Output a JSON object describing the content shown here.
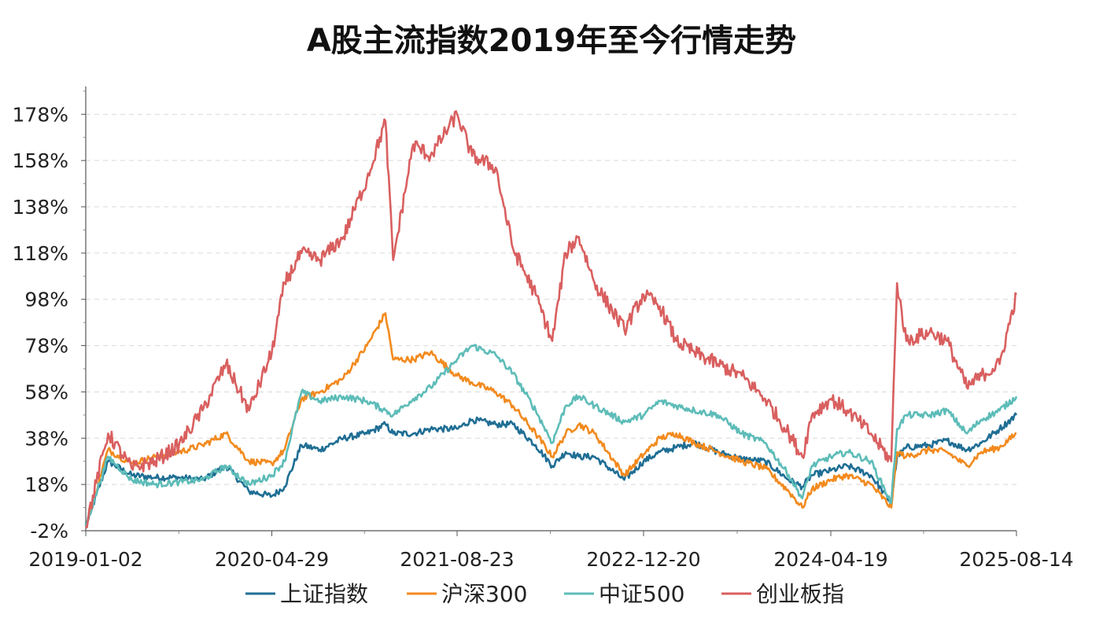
{
  "chart_data": {
    "type": "line",
    "title": "A股主流指数2019年至今行情走势",
    "xlabel": "",
    "ylabel": "",
    "x_tick_labels": [
      "2019-01-02",
      "2020-04-29",
      "2021-08-23",
      "2022-12-20",
      "2024-04-19",
      "2025-08-14"
    ],
    "y_ticks": [
      -2,
      18,
      38,
      58,
      78,
      98,
      118,
      138,
      158,
      178
    ],
    "y_tick_labels": [
      "-2%",
      "18%",
      "38%",
      "58%",
      "78%",
      "98%",
      "118%",
      "138%",
      "158%",
      "178%"
    ],
    "ylim": [
      -2,
      190
    ],
    "grid": "horizontal-dashed",
    "legend_position": "bottom",
    "x": [
      "2019-01-02",
      "2019-03-01",
      "2019-05-01",
      "2019-07-01",
      "2019-09-01",
      "2019-11-01",
      "2020-01-01",
      "2020-03-01",
      "2020-04-29",
      "2020-06-01",
      "2020-07-15",
      "2020-09-01",
      "2020-11-01",
      "2021-01-01",
      "2021-02-18",
      "2021-03-10",
      "2021-05-01",
      "2021-06-15",
      "2021-08-23",
      "2021-10-01",
      "2021-12-01",
      "2022-01-15",
      "2022-03-15",
      "2022-04-27",
      "2022-06-01",
      "2022-07-05",
      "2022-08-15",
      "2022-10-31",
      "2022-12-20",
      "2023-01-31",
      "2023-03-15",
      "2023-05-01",
      "2023-07-01",
      "2023-09-01",
      "2023-11-01",
      "2024-01-01",
      "2024-02-05",
      "2024-03-01",
      "2024-04-19",
      "2024-06-01",
      "2024-08-01",
      "2024-09-23",
      "2024-10-08",
      "2024-11-01",
      "2025-01-01",
      "2025-02-15",
      "2025-04-07",
      "2025-05-15",
      "2025-07-01",
      "2025-08-14"
    ],
    "series": [
      {
        "name": "上证指数",
        "color": "#1f6e94",
        "values": [
          0,
          28,
          22,
          21,
          21,
          20,
          26,
          15,
          13,
          17,
          35,
          33,
          38,
          40,
          44,
          40,
          40,
          42,
          42,
          46,
          44,
          44,
          35,
          26,
          32,
          30,
          30,
          20,
          28,
          32,
          34,
          36,
          32,
          29,
          28,
          20,
          17,
          22,
          24,
          26,
          22,
          10,
          30,
          34,
          35,
          37,
          33,
          36,
          42,
          48
        ]
      },
      {
        "name": "沪深300",
        "color": "#f28a1e",
        "values": [
          0,
          33,
          27,
          30,
          32,
          35,
          40,
          28,
          27,
          33,
          55,
          58,
          64,
          78,
          92,
          72,
          72,
          75,
          65,
          62,
          58,
          52,
          40,
          30,
          40,
          44,
          40,
          22,
          31,
          38,
          40,
          36,
          32,
          28,
          25,
          15,
          8,
          16,
          20,
          22,
          18,
          8,
          32,
          30,
          33,
          32,
          26,
          32,
          34,
          40
        ]
      },
      {
        "name": "中证500",
        "color": "#5dbcb8",
        "values": [
          0,
          30,
          20,
          18,
          19,
          20,
          26,
          18,
          22,
          28,
          58,
          54,
          56,
          54,
          50,
          48,
          55,
          60,
          72,
          78,
          74,
          66,
          50,
          36,
          52,
          56,
          52,
          45,
          48,
          54,
          52,
          50,
          48,
          40,
          36,
          22,
          12,
          26,
          30,
          32,
          28,
          10,
          42,
          48,
          48,
          50,
          40,
          46,
          50,
          56
        ]
      },
      {
        "name": "创业板指",
        "color": "#d95f5f",
        "values": [
          0,
          40,
          25,
          28,
          35,
          50,
          70,
          50,
          75,
          105,
          118,
          115,
          125,
          150,
          175,
          115,
          165,
          160,
          178,
          160,
          155,
          120,
          100,
          80,
          118,
          125,
          105,
          85,
          100,
          95,
          80,
          75,
          70,
          65,
          55,
          40,
          30,
          48,
          55,
          50,
          40,
          28,
          105,
          80,
          84,
          80,
          60,
          65,
          70,
          100
        ]
      }
    ]
  }
}
